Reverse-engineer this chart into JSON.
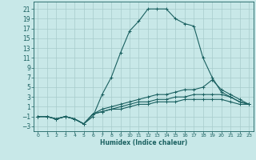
{
  "title": "",
  "xlabel": "Humidex (Indice chaleur)",
  "ylabel": "",
  "background_color": "#c8e8e8",
  "grid_color": "#a8cccc",
  "line_color": "#1a6060",
  "xlim": [
    -0.5,
    23.5
  ],
  "ylim": [
    -4,
    22.5
  ],
  "xticks": [
    0,
    1,
    2,
    3,
    4,
    5,
    6,
    7,
    8,
    9,
    10,
    11,
    12,
    13,
    14,
    15,
    16,
    17,
    18,
    19,
    20,
    21,
    22,
    23
  ],
  "yticks": [
    -3,
    -1,
    1,
    3,
    5,
    7,
    9,
    11,
    13,
    15,
    17,
    19,
    21
  ],
  "lines": [
    {
      "x": [
        0,
        1,
        2,
        3,
        4,
        5,
        6,
        7,
        8,
        9,
        10,
        11,
        12,
        13,
        14,
        15,
        16,
        17,
        18,
        19,
        20,
        21,
        22,
        23
      ],
      "y": [
        -1,
        -1,
        -1.5,
        -1,
        -1.5,
        -2.5,
        -1,
        3.5,
        7,
        12,
        16.5,
        18.5,
        21,
        21,
        21,
        19,
        18,
        17.5,
        11,
        7,
        4,
        3,
        2,
        1.5
      ]
    },
    {
      "x": [
        0,
        1,
        2,
        3,
        4,
        5,
        6,
        7,
        8,
        9,
        10,
        11,
        12,
        13,
        14,
        15,
        16,
        17,
        18,
        19,
        20,
        21,
        22,
        23
      ],
      "y": [
        -1,
        -1,
        -1.5,
        -1,
        -1.5,
        -2.5,
        -0.5,
        0.5,
        1,
        1.5,
        2,
        2.5,
        3,
        3.5,
        3.5,
        4,
        4.5,
        4.5,
        5,
        6.5,
        4.5,
        3.5,
        2.5,
        1.5
      ]
    },
    {
      "x": [
        0,
        1,
        2,
        3,
        4,
        5,
        6,
        7,
        8,
        9,
        10,
        11,
        12,
        13,
        14,
        15,
        16,
        17,
        18,
        19,
        20,
        21,
        22,
        23
      ],
      "y": [
        -1,
        -1,
        -1.5,
        -1,
        -1.5,
        -2.5,
        -0.5,
        0,
        0.5,
        1,
        1.5,
        2,
        2,
        2.5,
        2.5,
        3,
        3,
        3.5,
        3.5,
        3.5,
        3.5,
        3,
        2,
        1.5
      ]
    },
    {
      "x": [
        0,
        1,
        2,
        3,
        4,
        5,
        6,
        7,
        8,
        9,
        10,
        11,
        12,
        13,
        14,
        15,
        16,
        17,
        18,
        19,
        20,
        21,
        22,
        23
      ],
      "y": [
        -1,
        -1,
        -1.5,
        -1,
        -1.5,
        -2.5,
        -0.5,
        0,
        0.5,
        0.5,
        1,
        1.5,
        1.5,
        2,
        2,
        2,
        2.5,
        2.5,
        2.5,
        2.5,
        2.5,
        2,
        1.5,
        1.5
      ]
    }
  ]
}
